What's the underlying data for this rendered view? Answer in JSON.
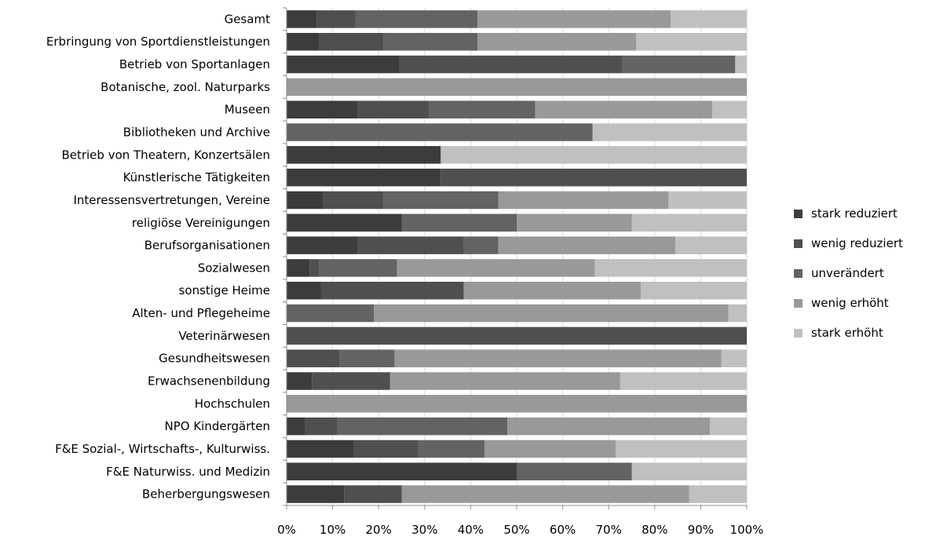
{
  "chart_data": {
    "type": "bar",
    "orientation": "horizontal",
    "stacked": "percent",
    "categories": [
      "Gesamt",
      "Erbringung von Sportdienstleistungen",
      "Betrieb von Sportanlagen",
      "Botanische, zool. Naturparks",
      "Museen",
      "Bibliotheken und Archive",
      "Betrieb von Theatern, Konzertsälen",
      "Künstlerische Tätigkeiten",
      "Interessensvertretungen, Vereine",
      "religiöse Vereinigungen",
      "Berufsorganisationen",
      "Sozialwesen",
      "sonstige Heime",
      "Alten- und Pflegeheime",
      "Veterinärwesen",
      "Gesundheitswesen",
      "Erwachsenenbildung",
      "Hochschulen",
      "NPO Kindergärten",
      "F&E Sozial-, Wirtschafts-, Kulturwiss.",
      "F&E Naturwiss. und Medizin",
      "Beherbergungswesen"
    ],
    "series": [
      {
        "name": "stark reduziert",
        "color": "#3c3c3c",
        "values": [
          6.5,
          7,
          24.5,
          0,
          15.5,
          0,
          33.5,
          33.5,
          8,
          25,
          15.5,
          5,
          7.5,
          0,
          0,
          0,
          5.5,
          0,
          4,
          14.5,
          50,
          12.5
        ]
      },
      {
        "name": "wenig reduziert",
        "color": "#4f4f4f",
        "values": [
          8.5,
          14,
          48.5,
          0,
          15.5,
          0,
          0,
          66.5,
          13,
          0,
          23,
          2,
          31,
          0,
          100,
          11.5,
          17,
          0,
          7,
          14,
          0,
          12.5
        ]
      },
      {
        "name": "unverändert",
        "color": "#636363",
        "values": [
          26.5,
          20.5,
          24.5,
          0,
          23,
          66.5,
          0,
          0,
          25,
          25,
          7.5,
          17,
          0,
          19,
          0,
          12,
          0,
          0,
          37,
          14.5,
          25,
          0
        ]
      },
      {
        "name": "wenig erhöht",
        "color": "#999999",
        "values": [
          42,
          34.5,
          0,
          100,
          38.5,
          0,
          0,
          0,
          37,
          25,
          38.5,
          43,
          38.5,
          77,
          0,
          71,
          50,
          100,
          44,
          28.5,
          0,
          62.5
        ]
      },
      {
        "name": "stark erhöht",
        "color": "#c0c0c0",
        "values": [
          16.5,
          24,
          2.5,
          0,
          7.5,
          33.5,
          66.5,
          0,
          17,
          25,
          15.5,
          33,
          23,
          4,
          0,
          5.5,
          27.5,
          0,
          8,
          28.5,
          25,
          12.5
        ]
      }
    ],
    "xticks": [
      "0%",
      "10%",
      "20%",
      "30%",
      "40%",
      "50%",
      "60%",
      "70%",
      "80%",
      "90%",
      "100%"
    ],
    "xlim": [
      0,
      100
    ],
    "grid": "vertical",
    "legend": "right",
    "title": "",
    "xlabel": "",
    "ylabel": ""
  }
}
